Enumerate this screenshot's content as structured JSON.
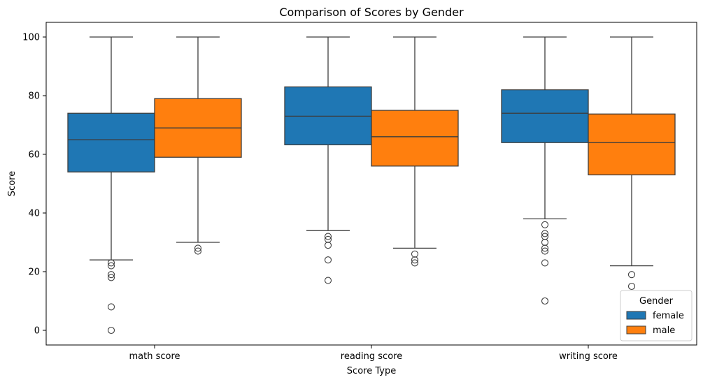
{
  "chart_data": {
    "type": "box",
    "title": "Comparison of Scores by Gender",
    "xlabel": "Score Type",
    "ylabel": "Score",
    "ylim": [
      -5,
      105
    ],
    "yticks": [
      0,
      20,
      40,
      60,
      80,
      100
    ],
    "grid": false,
    "categories": [
      "math score",
      "reading score",
      "writing score"
    ],
    "legend": {
      "title": "Gender",
      "position": "lower right"
    },
    "series": [
      {
        "name": "female",
        "color": "#1f77b4",
        "boxes": [
          {
            "whisker_low": 24,
            "q1": 54,
            "median": 65,
            "q3": 74,
            "whisker_high": 100,
            "outliers": [
              0,
              8,
              18,
              19,
              22,
              23
            ]
          },
          {
            "whisker_low": 34,
            "q1": 63.25,
            "median": 73,
            "q3": 83,
            "whisker_high": 100,
            "outliers": [
              17,
              24,
              29,
              31,
              32
            ]
          },
          {
            "whisker_low": 38,
            "q1": 64,
            "median": 74,
            "q3": 82,
            "whisker_high": 100,
            "outliers": [
              10,
              23,
              27,
              28,
              30,
              32,
              33,
              36
            ]
          }
        ]
      },
      {
        "name": "male",
        "color": "#ff7f0e",
        "boxes": [
          {
            "whisker_low": 30,
            "q1": 59,
            "median": 69,
            "q3": 79,
            "whisker_high": 100,
            "outliers": [
              27,
              28
            ]
          },
          {
            "whisker_low": 28,
            "q1": 56,
            "median": 66,
            "q3": 75,
            "whisker_high": 100,
            "outliers": [
              23,
              24,
              26
            ]
          },
          {
            "whisker_low": 22,
            "q1": 53,
            "median": 64,
            "q3": 73.75,
            "whisker_high": 100,
            "outliers": [
              15,
              19
            ]
          }
        ]
      }
    ]
  }
}
